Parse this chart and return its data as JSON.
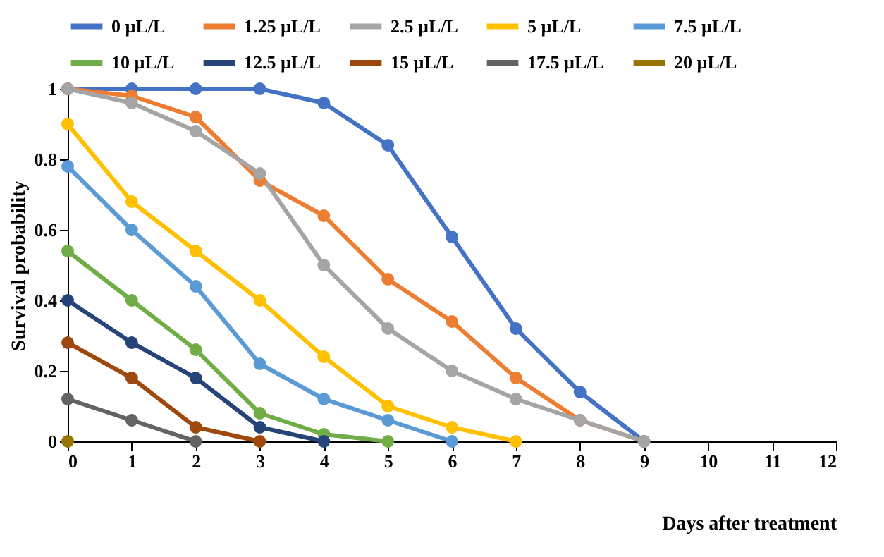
{
  "chart_data": {
    "type": "line",
    "xlabel": "Days after treatment",
    "ylabel": "Survival probability",
    "x": [
      0,
      1,
      2,
      3,
      4,
      5,
      6,
      7,
      8,
      9
    ],
    "xlim": [
      0,
      12
    ],
    "xticks": [
      0,
      1,
      2,
      3,
      4,
      5,
      6,
      7,
      8,
      9,
      10,
      11,
      12
    ],
    "ylim": [
      0,
      1
    ],
    "yticks": [
      0,
      0.2,
      0.4,
      0.6,
      0.8,
      1
    ],
    "grid": false,
    "legend": "top",
    "marker": "circle",
    "line_style": "solid",
    "series": [
      {
        "name": "0 µL/L",
        "color": "#4472c4",
        "values": [
          1,
          1,
          1,
          1,
          0.96,
          0.84,
          0.58,
          0.32,
          0.14,
          0
        ]
      },
      {
        "name": "1.25 µL/L",
        "color": "#ed7d31",
        "values": [
          1,
          0.98,
          0.92,
          0.74,
          0.64,
          0.46,
          0.34,
          0.18,
          0.06,
          0
        ]
      },
      {
        "name": "2.5 µL/L",
        "color": "#a5a5a5",
        "values": [
          1,
          0.96,
          0.88,
          0.76,
          0.5,
          0.32,
          0.2,
          0.12,
          0.06,
          0
        ]
      },
      {
        "name": "5 µL/L",
        "color": "#ffc000",
        "values": [
          0.9,
          0.68,
          0.54,
          0.4,
          0.24,
          0.1,
          0.04,
          0,
          null,
          null
        ]
      },
      {
        "name": "7.5 µL/L",
        "color": "#5b9bd5",
        "values": [
          0.78,
          0.6,
          0.44,
          0.22,
          0.12,
          0.06,
          0,
          null,
          null,
          null
        ]
      },
      {
        "name": "10 µL/L",
        "color": "#70ad47",
        "values": [
          0.54,
          0.4,
          0.26,
          0.08,
          0.02,
          0,
          null,
          null,
          null,
          null
        ]
      },
      {
        "name": "12.5 µL/L",
        "color": "#264478",
        "values": [
          0.4,
          0.28,
          0.18,
          0.04,
          0,
          null,
          null,
          null,
          null,
          null
        ]
      },
      {
        "name": "15 µL/L",
        "color": "#9e480e",
        "values": [
          0.28,
          0.18,
          0.04,
          0,
          null,
          null,
          null,
          null,
          null,
          null
        ]
      },
      {
        "name": "17.5 µL/L",
        "color": "#636363",
        "values": [
          0.12,
          0.06,
          0,
          null,
          null,
          null,
          null,
          null,
          null,
          null
        ]
      },
      {
        "name": "20 µL/L",
        "color": "#997300",
        "values": [
          0,
          null,
          null,
          null,
          null,
          null,
          null,
          null,
          null,
          null
        ]
      }
    ]
  }
}
